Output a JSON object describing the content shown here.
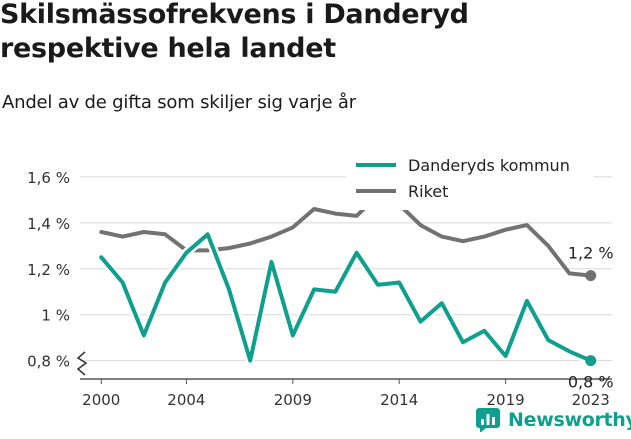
{
  "chart_data": {
    "type": "line",
    "title": "Skilsmässofrekvens i Danderyd respektive hela landet",
    "subtitle": "Andel av de gifta som skiljer sig varje år",
    "y_ticks": [
      "0,8 %",
      "1 %",
      "1,2 %",
      "1,4 %",
      "1,6 %"
    ],
    "y_tick_values": [
      0.8,
      1.0,
      1.2,
      1.4,
      1.6
    ],
    "x_ticks": [
      "2000",
      "2004",
      "2009",
      "2014",
      "2019",
      "2023"
    ],
    "x_tick_values": [
      2000,
      2004,
      2009,
      2014,
      2019,
      2023
    ],
    "xlim": [
      1999,
      2024
    ],
    "ylim": [
      0.72,
      1.63
    ],
    "grid": true,
    "legend_position": "top-right",
    "x": [
      2000,
      2001,
      2002,
      2003,
      2004,
      2005,
      2006,
      2007,
      2008,
      2009,
      2010,
      2011,
      2012,
      2013,
      2014,
      2015,
      2016,
      2017,
      2018,
      2019,
      2020,
      2021,
      2022,
      2023
    ],
    "series": [
      {
        "name": "Danderyds kommun",
        "color": "#0e9f8f",
        "values": [
          1.25,
          1.14,
          0.91,
          1.14,
          1.27,
          1.35,
          1.11,
          0.8,
          1.23,
          0.91,
          1.11,
          1.1,
          1.27,
          1.13,
          1.14,
          0.97,
          1.05,
          0.88,
          0.93,
          0.82,
          1.06,
          0.89,
          0.84,
          0.8
        ],
        "end_label": "0,8 %"
      },
      {
        "name": "Riket",
        "color": "#727272",
        "values": [
          1.36,
          1.34,
          1.36,
          1.35,
          1.28,
          1.28,
          1.29,
          1.31,
          1.34,
          1.38,
          1.46,
          1.44,
          1.43,
          1.52,
          1.48,
          1.39,
          1.34,
          1.32,
          1.34,
          1.37,
          1.39,
          1.3,
          1.18,
          1.17
        ],
        "end_label": "1,2 %"
      }
    ]
  },
  "brand": {
    "name": "Newsworthy"
  }
}
